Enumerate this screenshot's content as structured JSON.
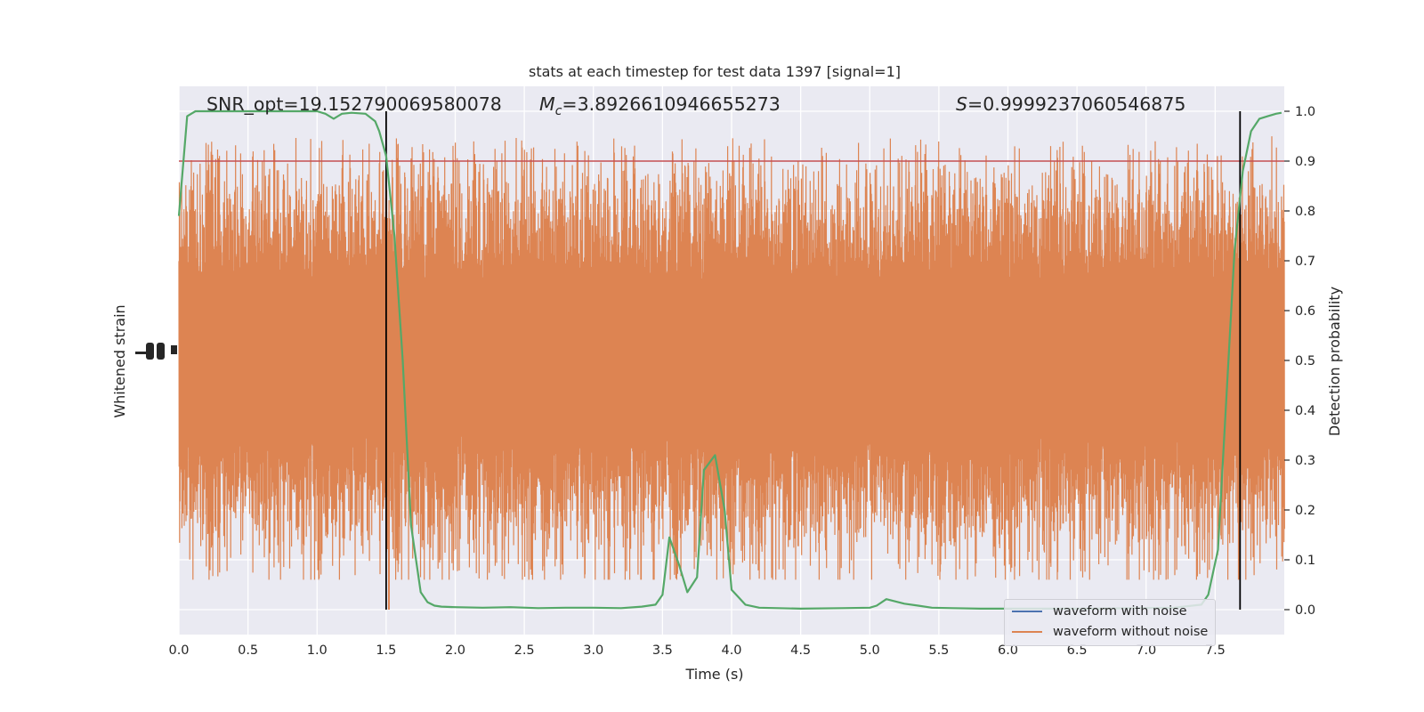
{
  "chart_data": {
    "type": "line",
    "title": "stats at each timestep for test data 1397 [signal=1]",
    "xlabel": "Time (s)",
    "ylabel_left": "Whitened strain",
    "ylabel_right": "Detection probability",
    "xlim": [
      0,
      8
    ],
    "ylim_right": [
      -0.05,
      1.05
    ],
    "x_ticks": [
      0.0,
      0.5,
      1.0,
      1.5,
      2.0,
      2.5,
      3.0,
      3.5,
      4.0,
      4.5,
      5.0,
      5.5,
      6.0,
      6.5,
      7.0,
      7.5
    ],
    "x_tick_labels": [
      "0.0",
      "0.5",
      "1.0",
      "1.5",
      "2.0",
      "2.5",
      "3.0",
      "3.5",
      "4.0",
      "4.5",
      "5.0",
      "5.5",
      "6.0",
      "6.5",
      "7.0",
      "7.5"
    ],
    "y_right_ticks": [
      0.0,
      0.1,
      0.2,
      0.3,
      0.4,
      0.5,
      0.6,
      0.7,
      0.8,
      0.9,
      1.0
    ],
    "y_right_tick_labels": [
      "0.0",
      "0.1",
      "0.2",
      "0.3",
      "0.4",
      "0.5",
      "0.6",
      "0.7",
      "0.8",
      "0.9",
      "1.0"
    ],
    "annotations": {
      "snr": "SNR_opt=19.152790069580078",
      "mc_symbol": "M",
      "mc_sub": "c",
      "mc_value": "=3.8926610946655273",
      "s_symbol": "S",
      "s_value": "=0.9999237060546875"
    },
    "threshold": 0.9,
    "vlines": [
      1.5,
      7.68
    ],
    "series": [
      {
        "name": "waveform with noise",
        "color": "#4c72b0",
        "values": []
      },
      {
        "name": "waveform without noise",
        "color": "#dd8452",
        "band_center": 0.5,
        "band_half_width": 0.36,
        "spike_max": 0.95,
        "spike_min": 0.0
      },
      {
        "name": "detection probability",
        "color": "#55a868",
        "x": [
          0.0,
          0.06,
          0.12,
          0.2,
          0.3,
          0.45,
          0.6,
          0.75,
          0.9,
          1.0,
          1.06,
          1.12,
          1.18,
          1.25,
          1.35,
          1.42,
          1.45,
          1.5,
          1.56,
          1.62,
          1.68,
          1.75,
          1.8,
          1.85,
          1.9,
          2.0,
          2.2,
          2.4,
          2.6,
          2.8,
          3.0,
          3.2,
          3.35,
          3.45,
          3.5,
          3.55,
          3.62,
          3.68,
          3.75,
          3.8,
          3.88,
          3.95,
          4.0,
          4.1,
          4.2,
          4.5,
          4.8,
          5.0,
          5.05,
          5.12,
          5.25,
          5.35,
          5.45,
          5.6,
          5.8,
          6.0,
          6.3,
          6.6,
          6.9,
          7.2,
          7.4,
          7.45,
          7.52,
          7.58,
          7.64,
          7.7,
          7.76,
          7.82,
          7.88,
          7.94,
          7.98
        ],
        "y": [
          0.79,
          0.99,
          1.0,
          1.0,
          1.0,
          1.0,
          1.0,
          1.0,
          1.0,
          1.0,
          0.995,
          0.985,
          0.995,
          0.997,
          0.995,
          0.98,
          0.96,
          0.91,
          0.75,
          0.5,
          0.17,
          0.035,
          0.015,
          0.008,
          0.006,
          0.005,
          0.004,
          0.005,
          0.003,
          0.004,
          0.004,
          0.003,
          0.006,
          0.01,
          0.03,
          0.145,
          0.09,
          0.035,
          0.065,
          0.28,
          0.31,
          0.2,
          0.04,
          0.01,
          0.004,
          0.002,
          0.003,
          0.004,
          0.008,
          0.021,
          0.012,
          0.008,
          0.004,
          0.003,
          0.002,
          0.002,
          0.002,
          0.002,
          0.003,
          0.004,
          0.01,
          0.03,
          0.12,
          0.42,
          0.72,
          0.88,
          0.96,
          0.985,
          0.99,
          0.995,
          0.997
        ]
      }
    ],
    "legend": "lower-right",
    "grid": true
  }
}
